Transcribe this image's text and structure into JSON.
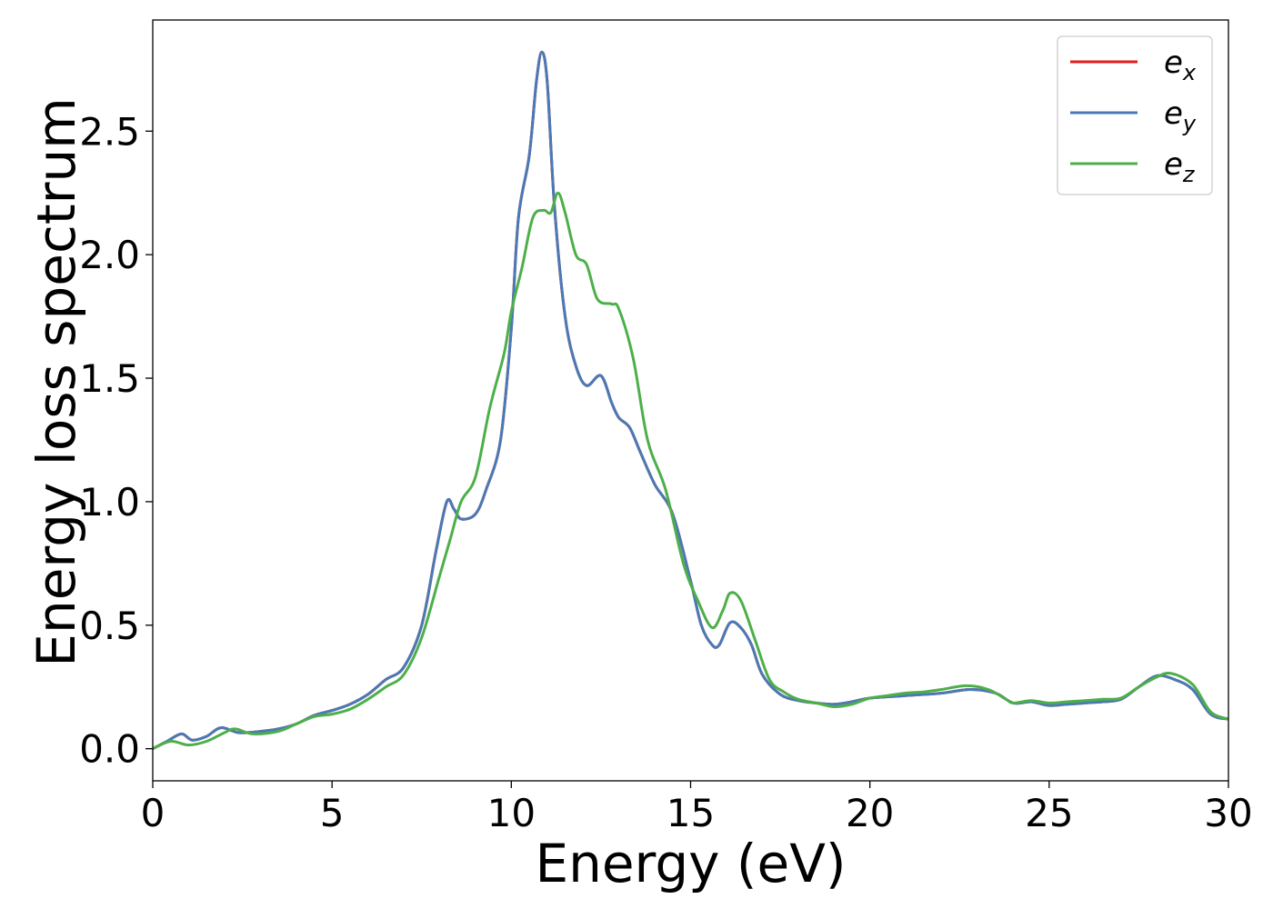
{
  "chart_data": {
    "type": "line",
    "title": "",
    "xlabel": "Energy (eV)",
    "ylabel": "Energy loss spectrum",
    "xlim": [
      0,
      30
    ],
    "ylim": [
      -0.13,
      2.95
    ],
    "xticks": [
      0,
      5,
      10,
      15,
      20,
      25,
      30
    ],
    "xtick_labels": [
      "0",
      "5",
      "10",
      "15",
      "20",
      "25",
      "30"
    ],
    "yticks": [
      0.0,
      0.5,
      1.0,
      1.5,
      2.0,
      2.5
    ],
    "ytick_labels": [
      "0.0",
      "0.5",
      "1.0",
      "1.5",
      "2.0",
      "2.5"
    ],
    "grid": false,
    "legend_position": "top-right",
    "series": [
      {
        "name": "e",
        "subscript": "x",
        "color": "#e41a1c",
        "points": [
          [
            0,
            0
          ],
          [
            0.4,
            0.03
          ],
          [
            0.8,
            0.06
          ],
          [
            1.1,
            0.035
          ],
          [
            1.5,
            0.05
          ],
          [
            1.9,
            0.085
          ],
          [
            2.4,
            0.065
          ],
          [
            3.0,
            0.07
          ],
          [
            3.5,
            0.08
          ],
          [
            4.0,
            0.1
          ],
          [
            4.5,
            0.135
          ],
          [
            5.0,
            0.155
          ],
          [
            5.5,
            0.18
          ],
          [
            6.0,
            0.22
          ],
          [
            6.5,
            0.28
          ],
          [
            7.0,
            0.33
          ],
          [
            7.5,
            0.5
          ],
          [
            7.9,
            0.8
          ],
          [
            8.2,
            1.0
          ],
          [
            8.4,
            0.97
          ],
          [
            8.6,
            0.93
          ],
          [
            9.0,
            0.95
          ],
          [
            9.3,
            1.05
          ],
          [
            9.7,
            1.25
          ],
          [
            10.0,
            1.7
          ],
          [
            10.2,
            2.15
          ],
          [
            10.5,
            2.4
          ],
          [
            10.7,
            2.7
          ],
          [
            10.85,
            2.82
          ],
          [
            11.0,
            2.7
          ],
          [
            11.2,
            2.2
          ],
          [
            11.5,
            1.75
          ],
          [
            11.8,
            1.55
          ],
          [
            12.1,
            1.47
          ],
          [
            12.5,
            1.51
          ],
          [
            12.8,
            1.4
          ],
          [
            13.0,
            1.34
          ],
          [
            13.3,
            1.3
          ],
          [
            13.6,
            1.2
          ],
          [
            14.0,
            1.07
          ],
          [
            14.5,
            0.95
          ],
          [
            15.0,
            0.68
          ],
          [
            15.3,
            0.5
          ],
          [
            15.6,
            0.42
          ],
          [
            15.8,
            0.42
          ],
          [
            16.1,
            0.51
          ],
          [
            16.4,
            0.49
          ],
          [
            16.7,
            0.42
          ],
          [
            17.0,
            0.3
          ],
          [
            17.5,
            0.22
          ],
          [
            18.0,
            0.195
          ],
          [
            18.5,
            0.185
          ],
          [
            19.0,
            0.18
          ],
          [
            19.5,
            0.19
          ],
          [
            20.0,
            0.205
          ],
          [
            21.0,
            0.215
          ],
          [
            22.0,
            0.225
          ],
          [
            22.8,
            0.24
          ],
          [
            23.5,
            0.225
          ],
          [
            24.0,
            0.185
          ],
          [
            24.5,
            0.19
          ],
          [
            25.0,
            0.175
          ],
          [
            25.5,
            0.18
          ],
          [
            26.0,
            0.185
          ],
          [
            26.5,
            0.19
          ],
          [
            27.0,
            0.2
          ],
          [
            27.5,
            0.25
          ],
          [
            28.0,
            0.295
          ],
          [
            28.5,
            0.28
          ],
          [
            29.0,
            0.24
          ],
          [
            29.5,
            0.14
          ],
          [
            30.0,
            0.12
          ]
        ]
      },
      {
        "name": "e",
        "subscript": "y",
        "color": "#4a7ab5",
        "points": [
          [
            0,
            0
          ],
          [
            0.4,
            0.03
          ],
          [
            0.8,
            0.06
          ],
          [
            1.1,
            0.035
          ],
          [
            1.5,
            0.05
          ],
          [
            1.9,
            0.085
          ],
          [
            2.4,
            0.065
          ],
          [
            3.0,
            0.07
          ],
          [
            3.5,
            0.08
          ],
          [
            4.0,
            0.1
          ],
          [
            4.5,
            0.135
          ],
          [
            5.0,
            0.155
          ],
          [
            5.5,
            0.18
          ],
          [
            6.0,
            0.22
          ],
          [
            6.5,
            0.28
          ],
          [
            7.0,
            0.33
          ],
          [
            7.5,
            0.5
          ],
          [
            7.9,
            0.8
          ],
          [
            8.2,
            1.0
          ],
          [
            8.4,
            0.97
          ],
          [
            8.6,
            0.93
          ],
          [
            9.0,
            0.95
          ],
          [
            9.3,
            1.05
          ],
          [
            9.7,
            1.25
          ],
          [
            10.0,
            1.7
          ],
          [
            10.2,
            2.15
          ],
          [
            10.5,
            2.4
          ],
          [
            10.7,
            2.7
          ],
          [
            10.85,
            2.82
          ],
          [
            11.0,
            2.7
          ],
          [
            11.2,
            2.2
          ],
          [
            11.5,
            1.75
          ],
          [
            11.8,
            1.55
          ],
          [
            12.1,
            1.47
          ],
          [
            12.5,
            1.51
          ],
          [
            12.8,
            1.4
          ],
          [
            13.0,
            1.34
          ],
          [
            13.3,
            1.3
          ],
          [
            13.6,
            1.2
          ],
          [
            14.0,
            1.07
          ],
          [
            14.5,
            0.95
          ],
          [
            15.0,
            0.68
          ],
          [
            15.3,
            0.5
          ],
          [
            15.6,
            0.42
          ],
          [
            15.8,
            0.42
          ],
          [
            16.1,
            0.51
          ],
          [
            16.4,
            0.49
          ],
          [
            16.7,
            0.42
          ],
          [
            17.0,
            0.3
          ],
          [
            17.5,
            0.22
          ],
          [
            18.0,
            0.195
          ],
          [
            18.5,
            0.185
          ],
          [
            19.0,
            0.18
          ],
          [
            19.5,
            0.19
          ],
          [
            20.0,
            0.205
          ],
          [
            21.0,
            0.215
          ],
          [
            22.0,
            0.225
          ],
          [
            22.8,
            0.24
          ],
          [
            23.5,
            0.225
          ],
          [
            24.0,
            0.185
          ],
          [
            24.5,
            0.19
          ],
          [
            25.0,
            0.175
          ],
          [
            25.5,
            0.18
          ],
          [
            26.0,
            0.185
          ],
          [
            26.5,
            0.19
          ],
          [
            27.0,
            0.2
          ],
          [
            27.5,
            0.25
          ],
          [
            28.0,
            0.295
          ],
          [
            28.5,
            0.28
          ],
          [
            29.0,
            0.24
          ],
          [
            29.5,
            0.14
          ],
          [
            30.0,
            0.12
          ]
        ]
      },
      {
        "name": "e",
        "subscript": "z",
        "color": "#4daf4a",
        "points": [
          [
            0,
            0
          ],
          [
            0.5,
            0.03
          ],
          [
            1.0,
            0.015
          ],
          [
            1.5,
            0.03
          ],
          [
            2.0,
            0.065
          ],
          [
            2.3,
            0.08
          ],
          [
            2.8,
            0.06
          ],
          [
            3.5,
            0.07
          ],
          [
            4.0,
            0.1
          ],
          [
            4.5,
            0.13
          ],
          [
            5.0,
            0.14
          ],
          [
            5.5,
            0.16
          ],
          [
            6.0,
            0.2
          ],
          [
            6.5,
            0.25
          ],
          [
            7.0,
            0.3
          ],
          [
            7.5,
            0.45
          ],
          [
            8.0,
            0.7
          ],
          [
            8.3,
            0.85
          ],
          [
            8.6,
            1.0
          ],
          [
            9.0,
            1.1
          ],
          [
            9.4,
            1.38
          ],
          [
            9.8,
            1.6
          ],
          [
            10.0,
            1.77
          ],
          [
            10.3,
            1.95
          ],
          [
            10.6,
            2.15
          ],
          [
            10.9,
            2.18
          ],
          [
            11.1,
            2.17
          ],
          [
            11.3,
            2.25
          ],
          [
            11.5,
            2.17
          ],
          [
            11.8,
            2.0
          ],
          [
            12.1,
            1.96
          ],
          [
            12.4,
            1.82
          ],
          [
            12.8,
            1.8
          ],
          [
            13.0,
            1.78
          ],
          [
            13.4,
            1.58
          ],
          [
            13.8,
            1.25
          ],
          [
            14.3,
            1.05
          ],
          [
            14.8,
            0.75
          ],
          [
            15.2,
            0.6
          ],
          [
            15.6,
            0.49
          ],
          [
            15.9,
            0.56
          ],
          [
            16.1,
            0.63
          ],
          [
            16.4,
            0.6
          ],
          [
            16.8,
            0.44
          ],
          [
            17.2,
            0.28
          ],
          [
            17.6,
            0.23
          ],
          [
            18.0,
            0.2
          ],
          [
            18.5,
            0.185
          ],
          [
            19.0,
            0.17
          ],
          [
            19.5,
            0.18
          ],
          [
            20.0,
            0.205
          ],
          [
            20.5,
            0.215
          ],
          [
            21.0,
            0.225
          ],
          [
            21.5,
            0.23
          ],
          [
            22.0,
            0.24
          ],
          [
            22.7,
            0.255
          ],
          [
            23.3,
            0.24
          ],
          [
            23.8,
            0.2
          ],
          [
            24.0,
            0.185
          ],
          [
            24.5,
            0.195
          ],
          [
            25.0,
            0.185
          ],
          [
            25.5,
            0.19
          ],
          [
            26.0,
            0.195
          ],
          [
            26.5,
            0.2
          ],
          [
            27.0,
            0.205
          ],
          [
            27.5,
            0.25
          ],
          [
            28.0,
            0.29
          ],
          [
            28.4,
            0.305
          ],
          [
            29.0,
            0.26
          ],
          [
            29.5,
            0.15
          ],
          [
            30.0,
            0.12
          ]
        ]
      }
    ]
  }
}
